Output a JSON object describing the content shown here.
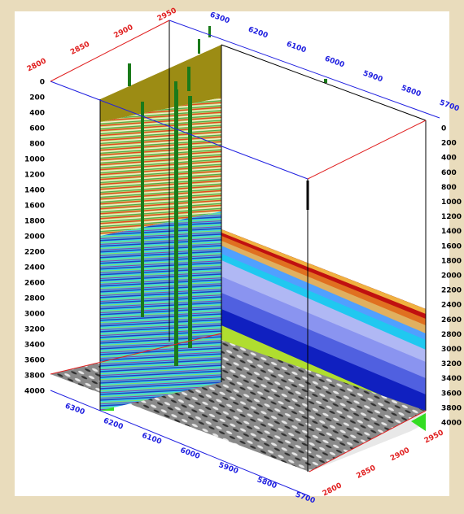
{
  "axes": {
    "depth_left": [
      0,
      200,
      400,
      600,
      800,
      1000,
      1200,
      1400,
      1600,
      1800,
      2000,
      2200,
      2400,
      2600,
      2800,
      3000,
      3200,
      3400,
      3600,
      3800,
      4000
    ],
    "depth_right": [
      0,
      200,
      400,
      600,
      800,
      1000,
      1200,
      1400,
      1600,
      1800,
      2000,
      2200,
      2400,
      2600,
      2800,
      3000,
      3200,
      3400,
      3600,
      3800,
      4000
    ],
    "top_red": [
      2800,
      2850,
      2900,
      2950
    ],
    "top_blue": [
      6300,
      6200,
      6100,
      6000,
      5900,
      5800,
      5700
    ],
    "bottom_blue": [
      6300,
      6200,
      6100,
      6000,
      5900,
      5800,
      5700
    ],
    "bottom_red": [
      2950,
      2900,
      2850,
      2800
    ]
  }
}
